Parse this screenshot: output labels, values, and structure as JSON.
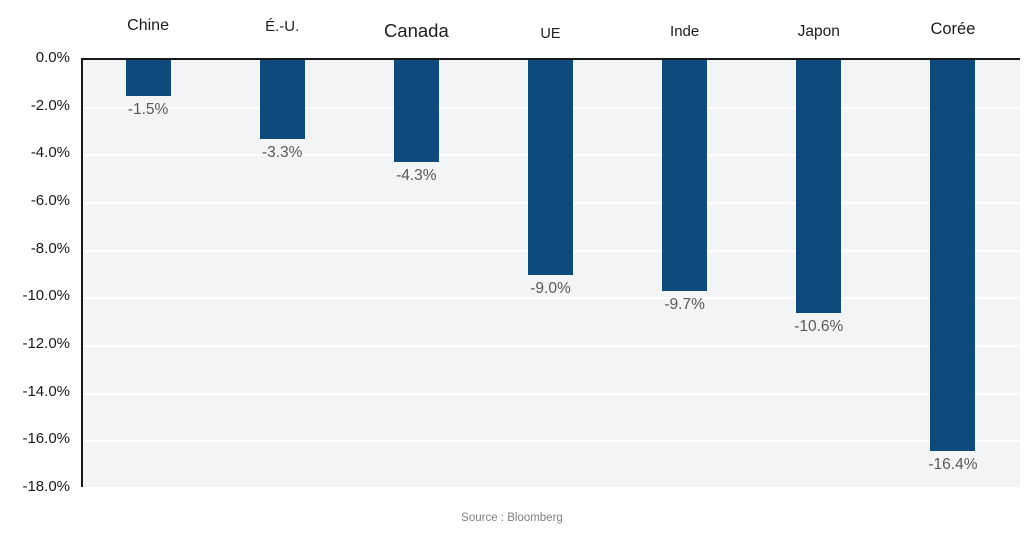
{
  "chart_data": {
    "type": "bar",
    "title": "",
    "categories": [
      "Chine",
      "É.-U.",
      "Canada",
      "UE",
      "Inde",
      "Japon",
      "Corée"
    ],
    "values": [
      -1.5,
      -3.3,
      -4.3,
      -9.0,
      -9.7,
      -10.6,
      -16.4
    ],
    "value_labels": [
      "-1.5%",
      "-3.3%",
      "-4.3%",
      "-9.0%",
      "-9.7%",
      "-10.6%",
      "-16.4%"
    ],
    "y_ticks": [
      "0.0%",
      "-2.0%",
      "-4.0%",
      "-6.0%",
      "-8.0%",
      "-10.0%",
      "-12.0%",
      "-14.0%",
      "-16.0%",
      "-18.0%"
    ],
    "ylim": [
      -18,
      0
    ],
    "xlabel": "",
    "ylabel": "",
    "grid": "horizontal",
    "legend": "none",
    "bar_color": "#0e4a7c",
    "plot_background": "#f3f4f6",
    "axis_color": "#17191c",
    "value_label_color": "#595959",
    "source": "Source : Bloomberg"
  }
}
